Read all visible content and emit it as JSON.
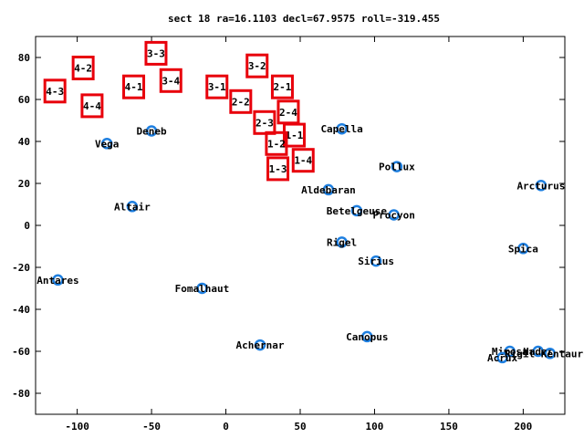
{
  "chart_data": {
    "type": "scatter",
    "title": "sect 18 ra=16.1103 decl=67.9575 roll=-319.455",
    "xlim": [
      -128,
      228
    ],
    "ylim": [
      -90,
      90
    ],
    "xticks": [
      -100,
      -50,
      0,
      50,
      100,
      150,
      200
    ],
    "yticks": [
      -80,
      -60,
      -40,
      -20,
      0,
      20,
      40,
      60,
      80
    ],
    "star_color": "#1e7fe0",
    "box_color": "#e8000b",
    "stars": [
      {
        "name": "Deneb",
        "x": -50,
        "y": 45
      },
      {
        "name": "Vega",
        "x": -80,
        "y": 39
      },
      {
        "name": "Altair",
        "x": -63,
        "y": 9
      },
      {
        "name": "Antares",
        "x": -113,
        "y": -26
      },
      {
        "name": "Fomalhaut",
        "x": -16,
        "y": -30
      },
      {
        "name": "Achernar",
        "x": 23,
        "y": -57
      },
      {
        "name": "Capella",
        "x": 78,
        "y": 46
      },
      {
        "name": "Pollux",
        "x": 115,
        "y": 28
      },
      {
        "name": "Aldebaran",
        "x": 69,
        "y": 17
      },
      {
        "name": "Betelgeuse",
        "x": 88,
        "y": 7
      },
      {
        "name": "Procyon",
        "x": 113,
        "y": 5
      },
      {
        "name": "Rigel",
        "x": 78,
        "y": -8
      },
      {
        "name": "Sirius",
        "x": 101,
        "y": -17
      },
      {
        "name": "Canopus",
        "x": 95,
        "y": -53
      },
      {
        "name": "Arcturus",
        "x": 212,
        "y": 19
      },
      {
        "name": "Spica",
        "x": 200,
        "y": -11
      },
      {
        "name": "Mimosa",
        "x": 191,
        "y": -60
      },
      {
        "name": "Acrux",
        "x": 186,
        "y": -63
      },
      {
        "name": "Hadar",
        "x": 210,
        "y": -60
      },
      {
        "name": "Rigil Kentaurus",
        "x": 218,
        "y": -61
      }
    ],
    "boxes": [
      {
        "label": "3-3",
        "x": -47,
        "y": 82
      },
      {
        "label": "4-2",
        "x": -96,
        "y": 75
      },
      {
        "label": "3-4",
        "x": -37,
        "y": 69
      },
      {
        "label": "4-1",
        "x": -62,
        "y": 66
      },
      {
        "label": "4-3",
        "x": -115,
        "y": 64
      },
      {
        "label": "4-4",
        "x": -90,
        "y": 57
      },
      {
        "label": "3-1",
        "x": -6,
        "y": 66
      },
      {
        "label": "3-2",
        "x": 21,
        "y": 76
      },
      {
        "label": "2-1",
        "x": 38,
        "y": 66
      },
      {
        "label": "2-2",
        "x": 10,
        "y": 59
      },
      {
        "label": "2-4",
        "x": 42,
        "y": 54
      },
      {
        "label": "2-3",
        "x": 26,
        "y": 49
      },
      {
        "label": "1-1",
        "x": 46,
        "y": 43
      },
      {
        "label": "1-2",
        "x": 34,
        "y": 39
      },
      {
        "label": "1-4",
        "x": 52,
        "y": 31
      },
      {
        "label": "1-3",
        "x": 35,
        "y": 27
      }
    ]
  }
}
